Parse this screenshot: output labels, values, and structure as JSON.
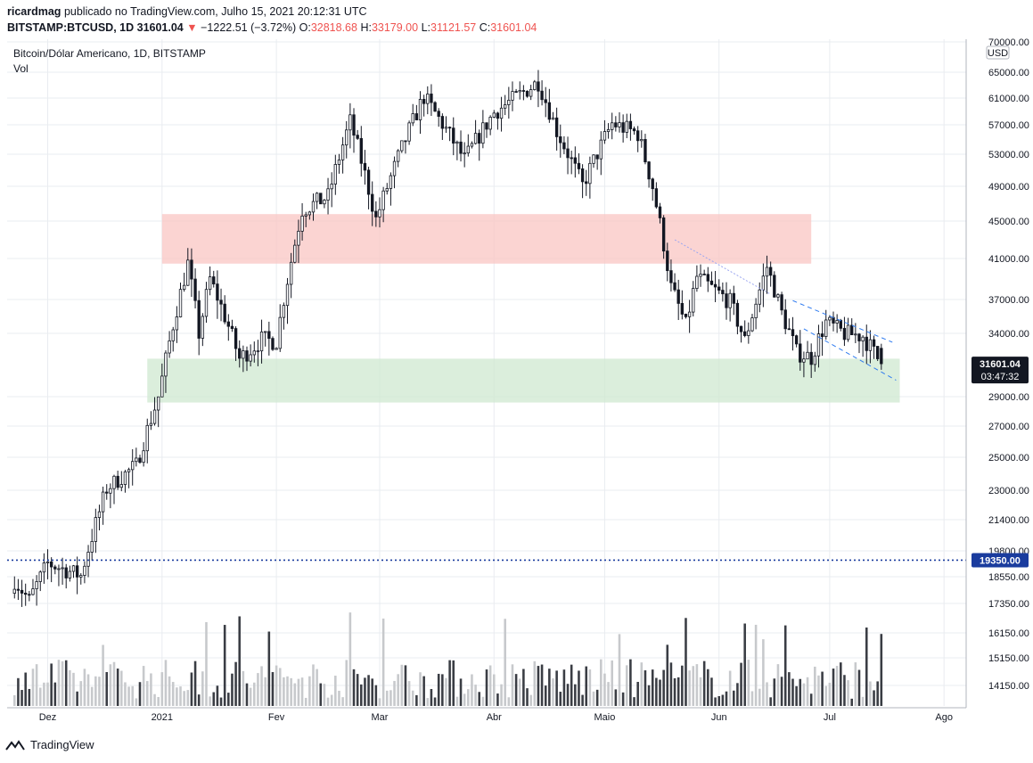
{
  "header": {
    "author": "ricardmag",
    "published_text": "publicado no TradingView.com, Julho 15, 2021 20:12:31 UTC",
    "symbol": "BITSTAMP:BTCUSD, 1D",
    "last": "31601.04",
    "change": "−1222.51 (−3.72%)",
    "ohlc": {
      "o_label": "O:",
      "o": "32818.68",
      "h_label": "H:",
      "h": "33179.00",
      "l_label": "L:",
      "l": "31121.57",
      "c_label": "C:",
      "c": "31601.04"
    }
  },
  "chart_title": "Bitcoin/Dólar Americano, 1D, BITSTAMP",
  "vol_label": "Vol",
  "footer": {
    "brand": "TradingView"
  },
  "chart_data": {
    "type": "candlestick",
    "symbol": "BTCUSD",
    "interval": "1D",
    "currency": "USD",
    "price_axis_ticks": [
      "70000.00",
      "65000.00",
      "61000.00",
      "57000.00",
      "53000.00",
      "49000.00",
      "45000.00",
      "41000.00",
      "37000.00",
      "34000.00",
      "31601.04",
      "29000.00",
      "27000.00",
      "25000.00",
      "23000.00",
      "21400.00",
      "19800.00",
      "19350.00",
      "18550.00",
      "17350.00",
      "16150.00",
      "15150.00",
      "14150.00"
    ],
    "time_axis_ticks": [
      "Dez",
      "2021",
      "Fev",
      "Mar",
      "Abr",
      "Maio",
      "Jun",
      "Jul",
      "Ago"
    ],
    "last_price_label": "31601.04",
    "countdown_label": "03:47:32",
    "hline_label": "19350.00",
    "hline_value": 19350,
    "resistance_zone": [
      40500,
      45800
    ],
    "support_zone": [
      28600,
      32000
    ],
    "channel_upper": [
      [
        "2021-06-21",
        36900
      ],
      [
        "2021-07-18",
        33300
      ]
    ],
    "channel_lower": [
      [
        "2021-06-24",
        34400
      ],
      [
        "2021-07-19",
        30300
      ]
    ],
    "trend_line": [
      [
        "2021-05-20",
        43000
      ],
      [
        "2021-06-15",
        37500
      ]
    ],
    "keypoints": [
      [
        "2020-11-22",
        18400
      ],
      [
        "2020-11-26",
        17500
      ],
      [
        "2020-12-01",
        19200
      ],
      [
        "2020-12-10",
        18600
      ],
      [
        "2020-12-17",
        23100
      ],
      [
        "2020-12-25",
        24500
      ],
      [
        "2020-12-31",
        29000
      ],
      [
        "2021-01-08",
        40500
      ],
      [
        "2021-01-11",
        34000
      ],
      [
        "2021-01-14",
        39000
      ],
      [
        "2021-01-22",
        32000
      ],
      [
        "2021-01-28",
        33500
      ],
      [
        "2021-02-01",
        33400
      ],
      [
        "2021-02-08",
        46300
      ],
      [
        "2021-02-15",
        47800
      ],
      [
        "2021-02-21",
        57500
      ],
      [
        "2021-02-28",
        45200
      ],
      [
        "2021-03-13",
        61200
      ],
      [
        "2021-03-24",
        52300
      ],
      [
        "2021-04-01",
        58800
      ],
      [
        "2021-04-13",
        63500
      ],
      [
        "2021-04-18",
        56200
      ],
      [
        "2021-04-25",
        49100
      ],
      [
        "2021-05-03",
        57200
      ],
      [
        "2021-05-10",
        55800
      ],
      [
        "2021-05-14",
        49000
      ],
      [
        "2021-05-19",
        38200
      ],
      [
        "2021-05-23",
        34700
      ],
      [
        "2021-05-26",
        39200
      ],
      [
        "2021-06-04",
        36800
      ],
      [
        "2021-06-08",
        33400
      ],
      [
        "2021-06-14",
        40200
      ],
      [
        "2021-06-18",
        35800
      ],
      [
        "2021-06-22",
        32500
      ],
      [
        "2021-06-26",
        32100
      ],
      [
        "2021-06-30",
        35000
      ],
      [
        "2021-07-05",
        34000
      ],
      [
        "2021-07-10",
        33800
      ],
      [
        "2021-07-15",
        31601
      ]
    ],
    "xlim": [
      "2020-11-20",
      "2021-08-07"
    ],
    "ylim": [
      10000,
      72000
    ]
  },
  "colors": {
    "candle_up": "#ffffff",
    "candle_down": "#131722",
    "wick": "#131722",
    "resistance": "#f9c5c3",
    "support": "#cfe8d0",
    "hline": "#1a3c9e",
    "channel": "#2f7bf0",
    "trend": "#9ba6f0",
    "last_price_bg": "#131722",
    "grid": "#e9ecf0"
  }
}
